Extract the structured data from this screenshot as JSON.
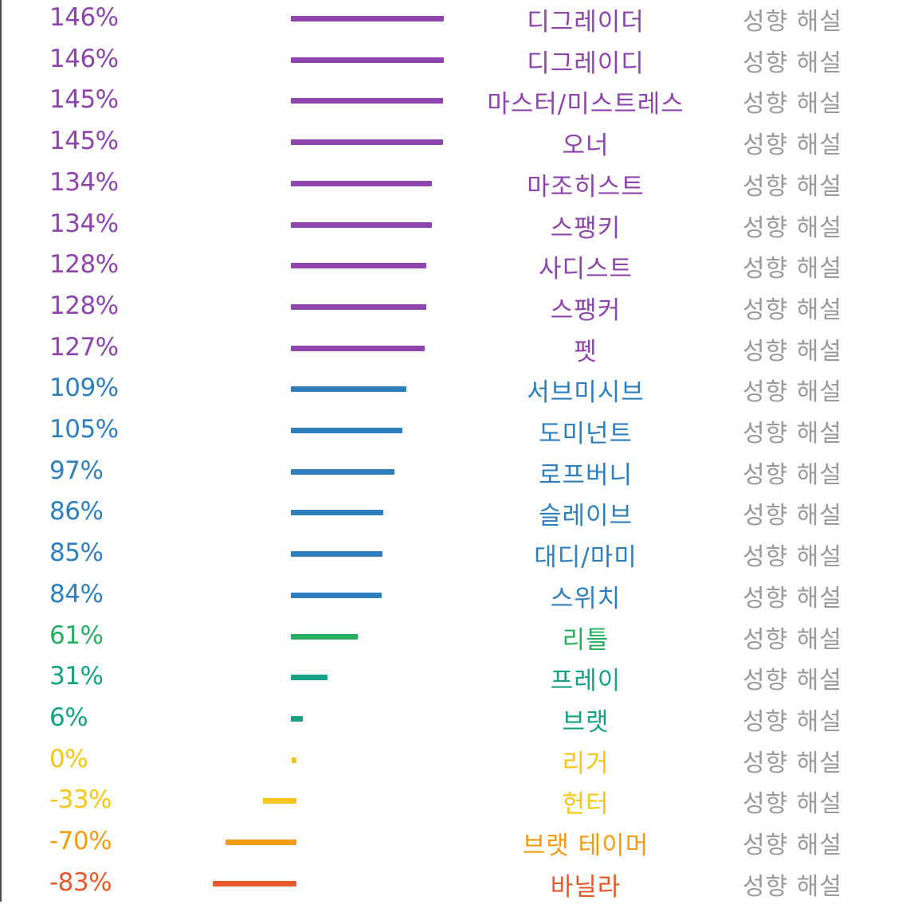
{
  "colors": {
    "purple": "#8e44ad",
    "blue": "#2e7fbd",
    "green": "#27ae60",
    "teal": "#16a085",
    "yellow": "#f5c518",
    "orange": "#f39c12",
    "red": "#e8582a",
    "link_gray": "#9a9a9a"
  },
  "scale": {
    "zero_value_percent": 0,
    "max_value_percent": 146
  },
  "rows": [
    {
      "percent": 146,
      "percent_label": "146%",
      "name": "디그레이더",
      "link_label": "성향 해설",
      "color": "purple"
    },
    {
      "percent": 146,
      "percent_label": "146%",
      "name": "디그레이디",
      "link_label": "성향 해설",
      "color": "purple"
    },
    {
      "percent": 145,
      "percent_label": "145%",
      "name": "마스터/미스트레스",
      "link_label": "성향 해설",
      "color": "purple"
    },
    {
      "percent": 145,
      "percent_label": "145%",
      "name": "오너",
      "link_label": "성향 해설",
      "color": "purple"
    },
    {
      "percent": 134,
      "percent_label": "134%",
      "name": "마조히스트",
      "link_label": "성향 해설",
      "color": "purple"
    },
    {
      "percent": 134,
      "percent_label": "134%",
      "name": "스팽키",
      "link_label": "성향 해설",
      "color": "purple"
    },
    {
      "percent": 128,
      "percent_label": "128%",
      "name": "사디스트",
      "link_label": "성향 해설",
      "color": "purple"
    },
    {
      "percent": 128,
      "percent_label": "128%",
      "name": "스팽커",
      "link_label": "성향 해설",
      "color": "purple"
    },
    {
      "percent": 127,
      "percent_label": "127%",
      "name": "펫",
      "link_label": "성향 해설",
      "color": "purple"
    },
    {
      "percent": 109,
      "percent_label": "109%",
      "name": "서브미시브",
      "link_label": "성향 해설",
      "color": "blue"
    },
    {
      "percent": 105,
      "percent_label": "105%",
      "name": "도미넌트",
      "link_label": "성향 해설",
      "color": "blue"
    },
    {
      "percent": 97,
      "percent_label": "97%",
      "name": "로프버니",
      "link_label": "성향 해설",
      "color": "blue"
    },
    {
      "percent": 86,
      "percent_label": "86%",
      "name": "슬레이브",
      "link_label": "성향 해설",
      "color": "blue"
    },
    {
      "percent": 85,
      "percent_label": "85%",
      "name": "대디/마미",
      "link_label": "성향 해설",
      "color": "blue"
    },
    {
      "percent": 84,
      "percent_label": "84%",
      "name": "스위치",
      "link_label": "성향 해설",
      "color": "blue"
    },
    {
      "percent": 61,
      "percent_label": "61%",
      "name": "리틀",
      "link_label": "성향 해설",
      "color": "green"
    },
    {
      "percent": 31,
      "percent_label": "31%",
      "name": "프레이",
      "link_label": "성향 해설",
      "color": "teal"
    },
    {
      "percent": 6,
      "percent_label": "6%",
      "name": "브랫",
      "link_label": "성향 해설",
      "color": "teal"
    },
    {
      "percent": 0,
      "percent_label": "0%",
      "name": "리거",
      "link_label": "성향 해설",
      "color": "yellow"
    },
    {
      "percent": -33,
      "percent_label": "-33%",
      "name": "헌터",
      "link_label": "성향 해설",
      "color": "yellow"
    },
    {
      "percent": -70,
      "percent_label": "-70%",
      "name": "브랫 테이머",
      "link_label": "성향 해설",
      "color": "orange"
    },
    {
      "percent": -83,
      "percent_label": "-83%",
      "name": "바닐라",
      "link_label": "성향 해설",
      "color": "red"
    }
  ]
}
